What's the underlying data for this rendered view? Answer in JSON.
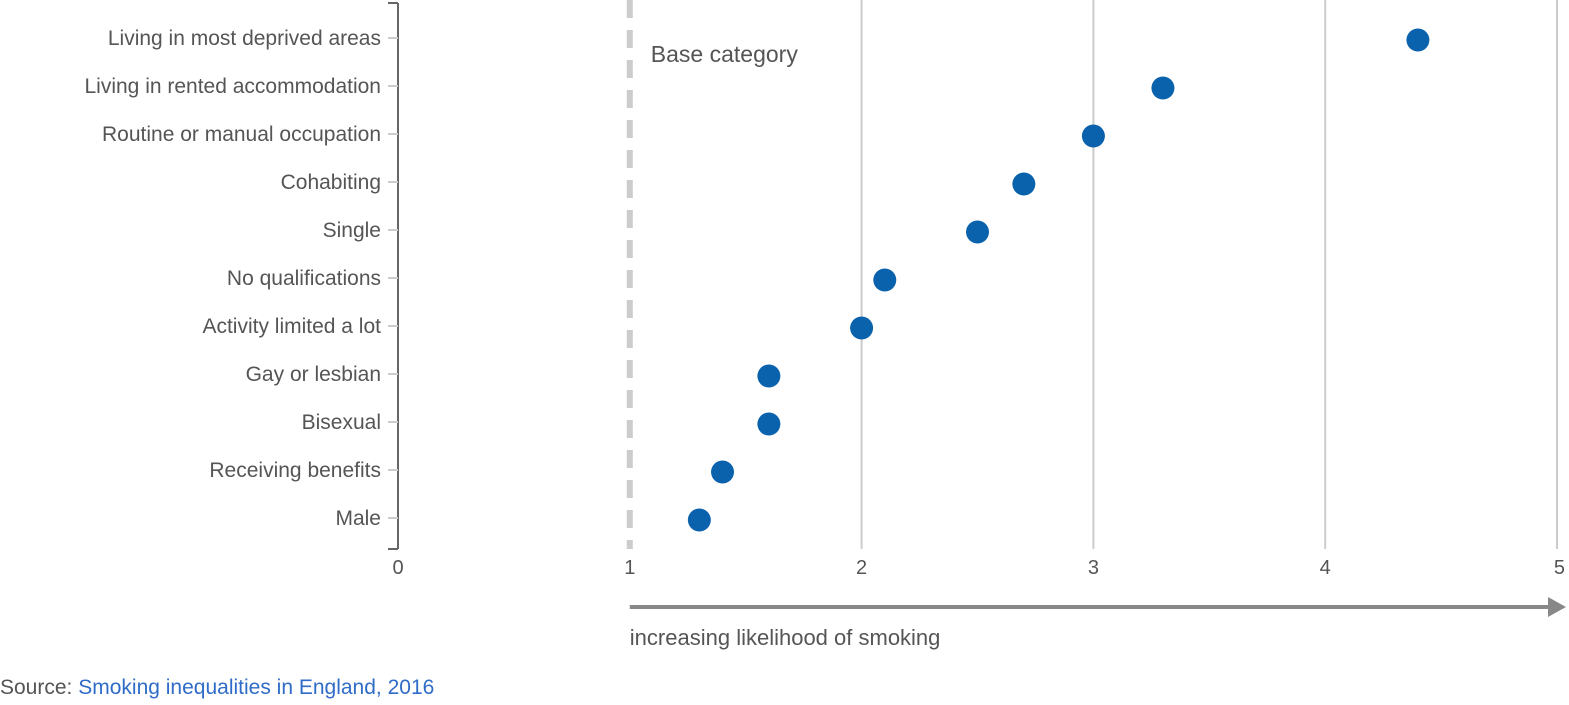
{
  "chart_data": {
    "type": "scatter",
    "title": "",
    "xlabel": "increasing likelihood of smoking",
    "ylabel": "",
    "xlim": [
      0,
      5
    ],
    "xticks": [
      "0",
      "1",
      "2",
      "3",
      "4",
      "5"
    ],
    "categories": [
      "Living in most deprived areas",
      "Living in rented accommodation",
      "Routine or manual occupation",
      "Cohabiting",
      "Single",
      "No qualifications",
      "Activity limited a lot",
      "Gay or lesbian",
      "Bisexual",
      "Receiving benefits",
      "Male"
    ],
    "values": [
      4.4,
      3.3,
      3.0,
      2.7,
      2.5,
      2.1,
      2.0,
      1.6,
      1.6,
      1.4,
      1.3
    ],
    "reference_line": {
      "x": 1,
      "label": "Base category"
    },
    "grid": true,
    "colors": {
      "points": "#0b62ac",
      "grid": "#cccccc",
      "reference": "#cccccc",
      "text": "#555555",
      "arrow": "#888888"
    }
  },
  "source": {
    "prefix": "Source: ",
    "link_text": "Smoking inequalities in England, 2016"
  }
}
